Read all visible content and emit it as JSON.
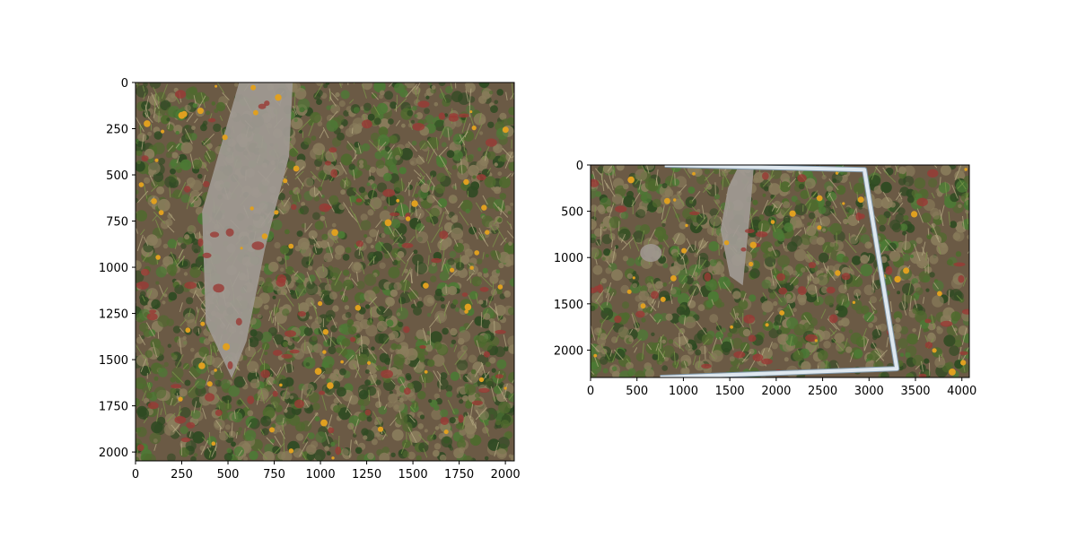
{
  "chart_data": [
    {
      "type": "image",
      "image_width": 2048,
      "image_height": 2048,
      "xlim": [
        0,
        2048
      ],
      "ylim": [
        2048,
        0
      ],
      "x_ticks": [
        0,
        250,
        500,
        750,
        1000,
        1250,
        1500,
        1750,
        2000
      ],
      "y_ticks": [
        0,
        250,
        500,
        750,
        1000,
        1250,
        1500,
        1750,
        2000
      ],
      "title": "",
      "xlabel": "",
      "ylabel": "",
      "grid": false
    },
    {
      "type": "image",
      "image_width": 4080,
      "image_height": 2296,
      "xlim": [
        0,
        4080
      ],
      "ylim": [
        2296,
        0
      ],
      "x_ticks": [
        0,
        500,
        1000,
        1500,
        2000,
        2500,
        3000,
        3500,
        4000
      ],
      "y_ticks": [
        0,
        500,
        1000,
        1500,
        2000
      ],
      "frame_corners": [
        [
          800,
          0
        ],
        [
          2950,
          50
        ],
        [
          3300,
          2200
        ],
        [
          750,
          2296
        ]
      ],
      "title": "",
      "xlabel": "",
      "ylabel": "",
      "grid": false
    }
  ],
  "colors": {
    "soil": "#6b5a45",
    "grass_dry": "#8a7d5c",
    "grass_green": "#4f6a2e",
    "leaf_dark": "#2e4a22",
    "leaf_mid": "#4c7a35",
    "leaf_red": "#9a3a35",
    "flower_yellow": "#e0a020",
    "rock": "#a19a94",
    "pipe": "#dfe8ef"
  }
}
